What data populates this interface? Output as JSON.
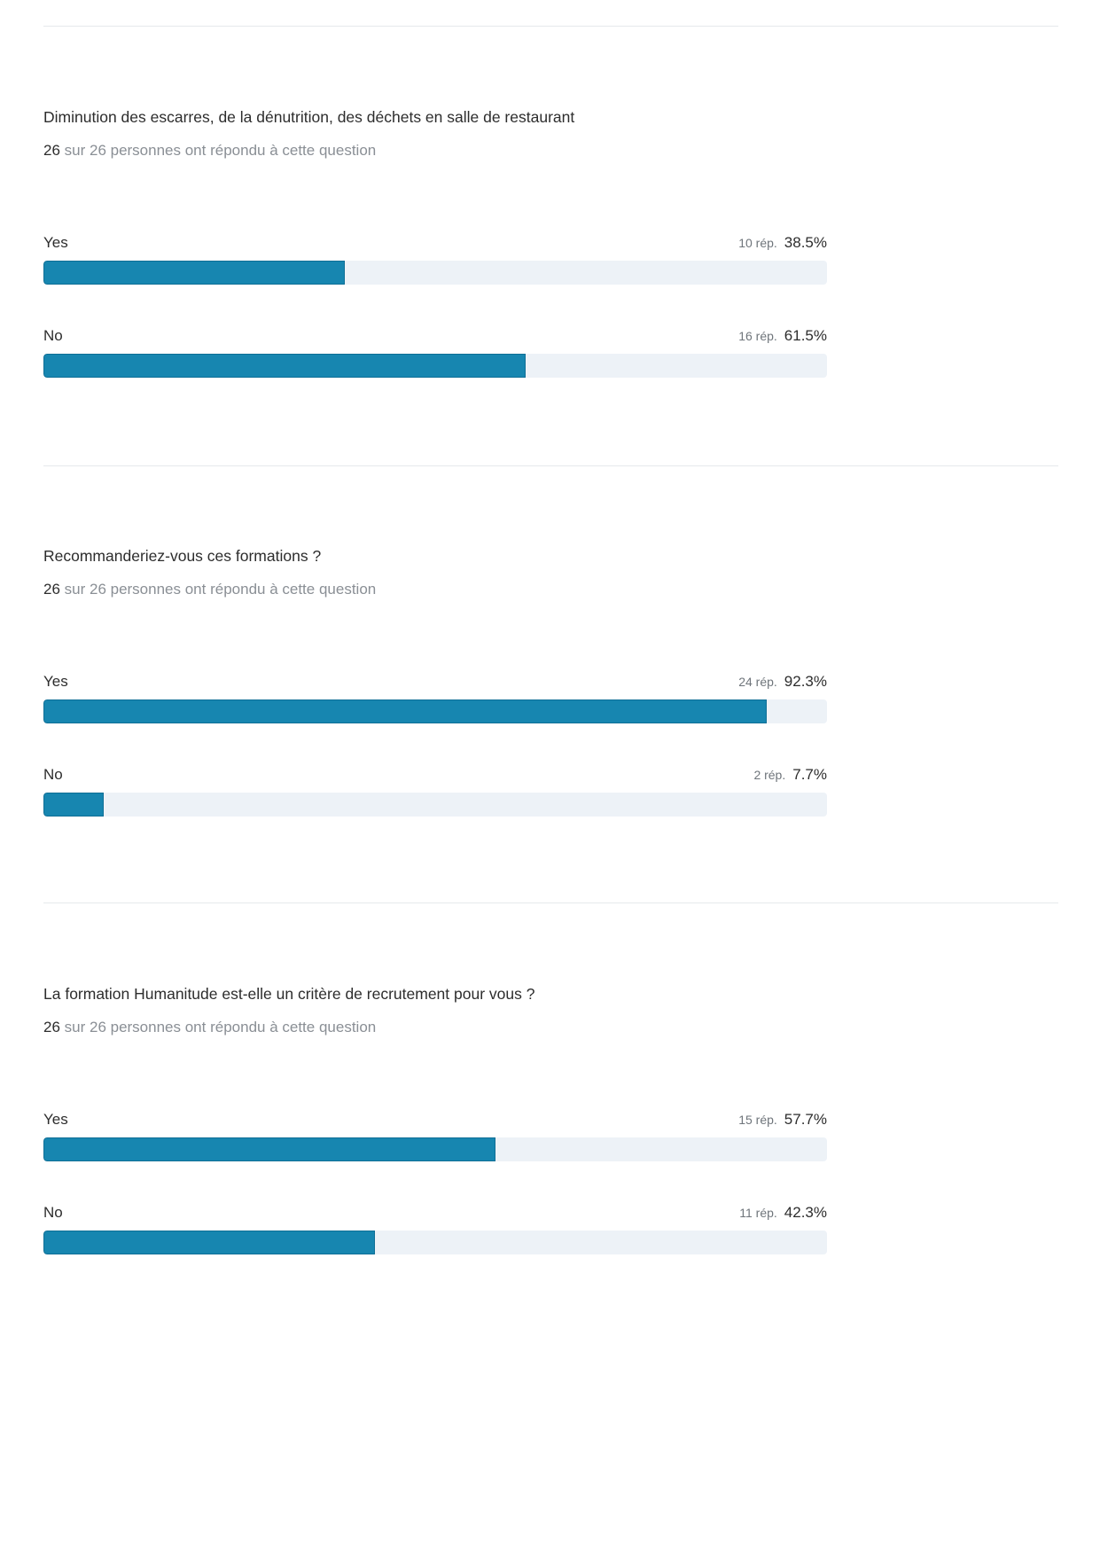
{
  "questions": [
    {
      "title": "Diminution des escarres, de la dénutrition, des déchets en salle de restaurant",
      "answered_count": "26",
      "answered_text": " sur 26 personnes ont répondu à cette question",
      "options": [
        {
          "label": "Yes",
          "responses": "10 rép.",
          "percent": "38.5%",
          "fraction": 0.385
        },
        {
          "label": "No",
          "responses": "16 rép.",
          "percent": "61.5%",
          "fraction": 0.615
        }
      ]
    },
    {
      "title": "Recommanderiez-vous ces formations ?",
      "answered_count": "26",
      "answered_text": " sur 26 personnes ont répondu à cette question",
      "options": [
        {
          "label": "Yes",
          "responses": "24 rép.",
          "percent": "92.3%",
          "fraction": 0.923
        },
        {
          "label": "No",
          "responses": "2 rép.",
          "percent": "7.7%",
          "fraction": 0.077
        }
      ]
    },
    {
      "title": "La formation Humanitude est-elle un critère de recrutement pour vous ?",
      "answered_count": "26",
      "answered_text": " sur 26 personnes ont répondu à cette question",
      "options": [
        {
          "label": "Yes",
          "responses": "15 rép.",
          "percent": "57.7%",
          "fraction": 0.577
        },
        {
          "label": "No",
          "responses": "11 rép.",
          "percent": "42.3%",
          "fraction": 0.423
        }
      ]
    }
  ],
  "colors": {
    "bar_fill": "#1786b0",
    "bar_track": "#edf2f7",
    "divider": "#e6e9ec"
  }
}
